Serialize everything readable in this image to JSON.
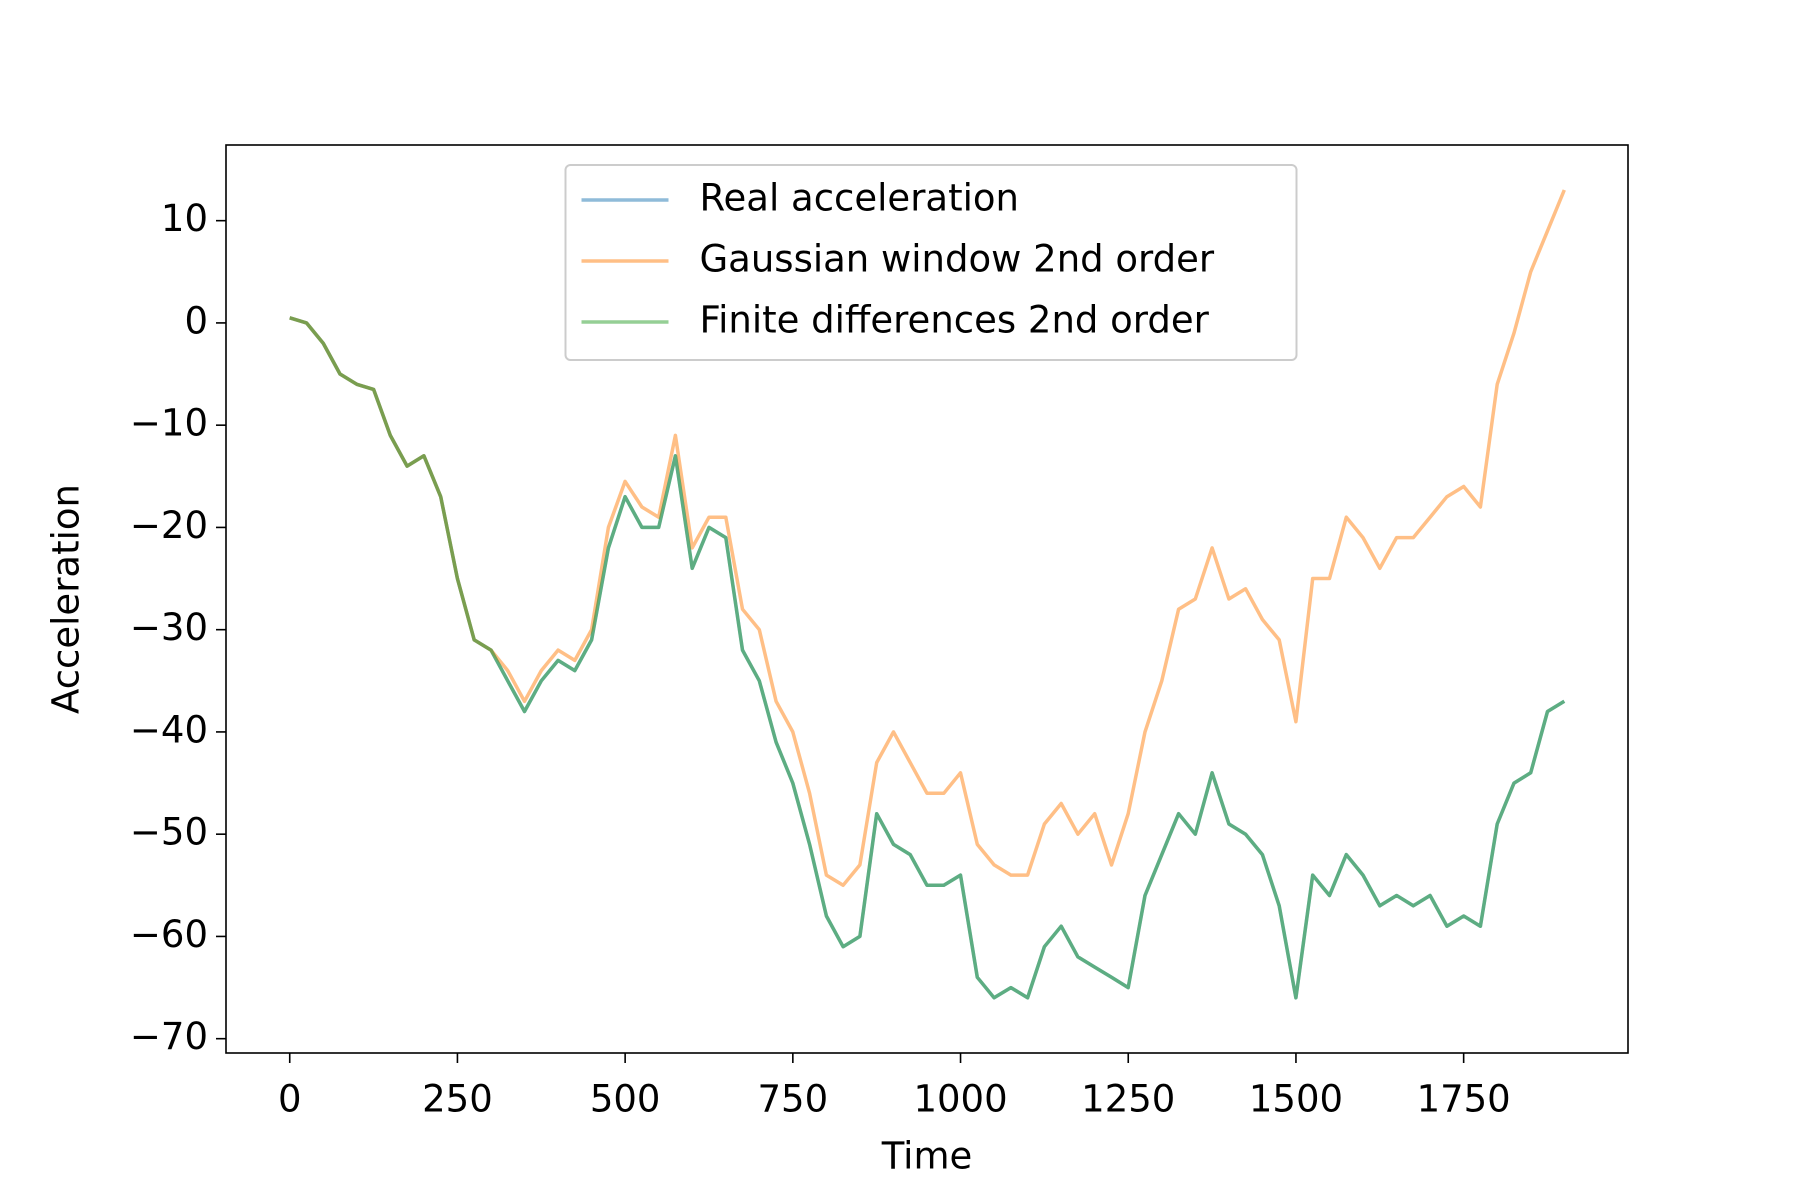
{
  "chart_data": {
    "type": "line",
    "xlabel": "Time",
    "ylabel": "Acceleration",
    "x": [
      0,
      25,
      50,
      75,
      100,
      125,
      150,
      175,
      200,
      225,
      250,
      275,
      300,
      325,
      350,
      375,
      400,
      425,
      450,
      475,
      500,
      525,
      550,
      575,
      600,
      625,
      650,
      675,
      700,
      725,
      750,
      775,
      800,
      825,
      850,
      875,
      900,
      925,
      950,
      975,
      1000,
      1025,
      1050,
      1075,
      1100,
      1125,
      1150,
      1175,
      1200,
      1225,
      1250,
      1275,
      1300,
      1325,
      1350,
      1375,
      1400,
      1425,
      1450,
      1475,
      1500,
      1525,
      1550,
      1575,
      1600,
      1625,
      1650,
      1675,
      1700,
      1725,
      1750,
      1775,
      1800,
      1825,
      1850,
      1875,
      1900
    ],
    "series": [
      {
        "name": "Real acceleration",
        "color": "#1f77b4",
        "values": [
          0.5,
          0,
          -2,
          -5,
          -6,
          -6.5,
          -11,
          -14,
          -13,
          -17,
          -25,
          -31,
          -32,
          -35,
          -38,
          -35,
          -33,
          -34,
          -31,
          -22,
          -17,
          -20,
          -20,
          -13,
          -24,
          -20,
          -21,
          -32,
          -35,
          -41,
          -45,
          -51,
          -58,
          -61,
          -60,
          -48,
          -51,
          -52,
          -55,
          -55,
          -54,
          -64,
          -66,
          -65,
          -66,
          -61,
          -59,
          -62,
          -63,
          -64,
          -65,
          -56,
          -52,
          -48,
          -50,
          -44,
          -49,
          -50,
          -52,
          -57,
          -66,
          -54,
          -56,
          -52,
          -54,
          -57,
          -56,
          -57,
          -56,
          -59,
          -58,
          -59,
          -49,
          -45,
          -44,
          -38,
          -37
        ]
      },
      {
        "name": "Gaussian window 2nd order",
        "color": "#ff7f0e",
        "values": [
          0.5,
          0,
          -2,
          -5,
          -6,
          -6.5,
          -11,
          -14,
          -13,
          -17,
          -25,
          -31,
          -32,
          -34,
          -37,
          -34,
          -32,
          -33,
          -30,
          -20,
          -15.5,
          -18,
          -19,
          -11,
          -22,
          -19,
          -19,
          -28,
          -30,
          -37,
          -40,
          -46,
          -54,
          -55,
          -53,
          -43,
          -40,
          -43,
          -46,
          -46,
          -44,
          -51,
          -53,
          -54,
          -54,
          -49,
          -47,
          -50,
          -48,
          -53,
          -48,
          -40,
          -35,
          -28,
          -27,
          -22,
          -27,
          -26,
          -29,
          -31,
          -39,
          -25,
          -25,
          -19,
          -21,
          -24,
          -21,
          -21,
          -19,
          -17,
          -16,
          -18,
          -6,
          -1,
          5,
          9,
          13
        ]
      },
      {
        "name": "Finite differences 2nd order",
        "color": "#2ca02c",
        "values": [
          0.5,
          0,
          -2,
          -5,
          -6,
          -6.5,
          -11,
          -14,
          -13,
          -17,
          -25,
          -31,
          -32,
          -35,
          -38,
          -35,
          -33,
          -34,
          -31,
          -22,
          -17,
          -20,
          -20,
          -13,
          -24,
          -20,
          -21,
          -32,
          -35,
          -41,
          -45,
          -51,
          -58,
          -61,
          -60,
          -48,
          -51,
          -52,
          -55,
          -55,
          -54,
          -64,
          -66,
          -65,
          -66,
          -61,
          -59,
          -62,
          -63,
          -64,
          -65,
          -56,
          -52,
          -48,
          -50,
          -44,
          -49,
          -50,
          -52,
          -57,
          -66,
          -54,
          -56,
          -52,
          -54,
          -57,
          -56,
          -57,
          -56,
          -59,
          -58,
          -59,
          -49,
          -45,
          -44,
          -38,
          -37
        ]
      }
    ],
    "xlim": [
      -95,
      1995
    ],
    "ylim": [
      -71.4,
      17.4
    ],
    "xticks": [
      0,
      250,
      500,
      750,
      1000,
      1250,
      1500,
      1750
    ],
    "yticks": [
      {
        "value": -70,
        "label": "−70"
      },
      {
        "value": -60,
        "label": "−60"
      },
      {
        "value": -50,
        "label": "−50"
      },
      {
        "value": -40,
        "label": "−40"
      },
      {
        "value": -30,
        "label": "−30"
      },
      {
        "value": -20,
        "label": "−20"
      },
      {
        "value": -10,
        "label": "−10"
      },
      0,
      10
    ],
    "legend": "upper center",
    "line_alpha": 0.5
  }
}
